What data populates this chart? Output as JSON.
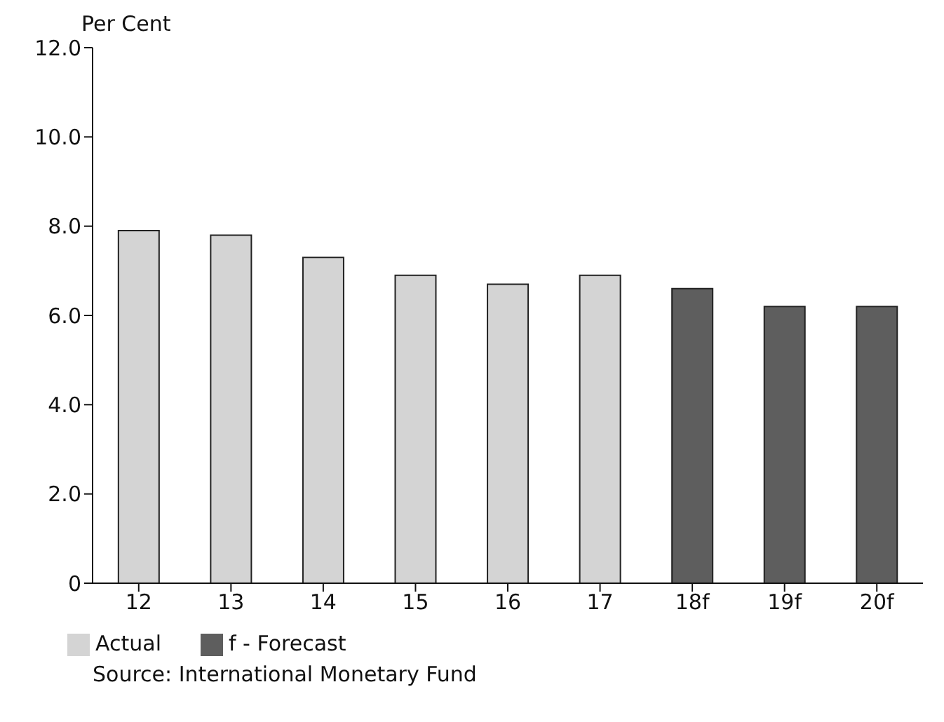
{
  "chart_data": {
    "type": "bar",
    "ylabel": "Per Cent",
    "categories": [
      "12",
      "13",
      "14",
      "15",
      "16",
      "17",
      "18f",
      "19f",
      "20f"
    ],
    "series": [
      {
        "name": "Actual",
        "color": "#d4d4d4",
        "values": [
          7.9,
          7.8,
          7.3,
          6.9,
          6.7,
          6.9,
          null,
          null,
          null
        ]
      },
      {
        "name": "f - Forecast",
        "color": "#5e5e5e",
        "values": [
          null,
          null,
          null,
          null,
          null,
          null,
          6.6,
          6.2,
          6.2
        ]
      }
    ],
    "stacked": true,
    "ylim": [
      0,
      12
    ],
    "yticks": [
      0,
      {
        "value": 2,
        "label": "2.0"
      },
      {
        "value": 4,
        "label": "4.0"
      },
      {
        "value": 6,
        "label": "6.0"
      },
      {
        "value": 8,
        "label": "8.0"
      },
      {
        "value": 10,
        "label": "10.0"
      },
      {
        "value": 12,
        "label": "12.0"
      }
    ],
    "grid": false,
    "legend": "bottom left",
    "annotations": [
      "Source: International Monetary Fund"
    ]
  }
}
